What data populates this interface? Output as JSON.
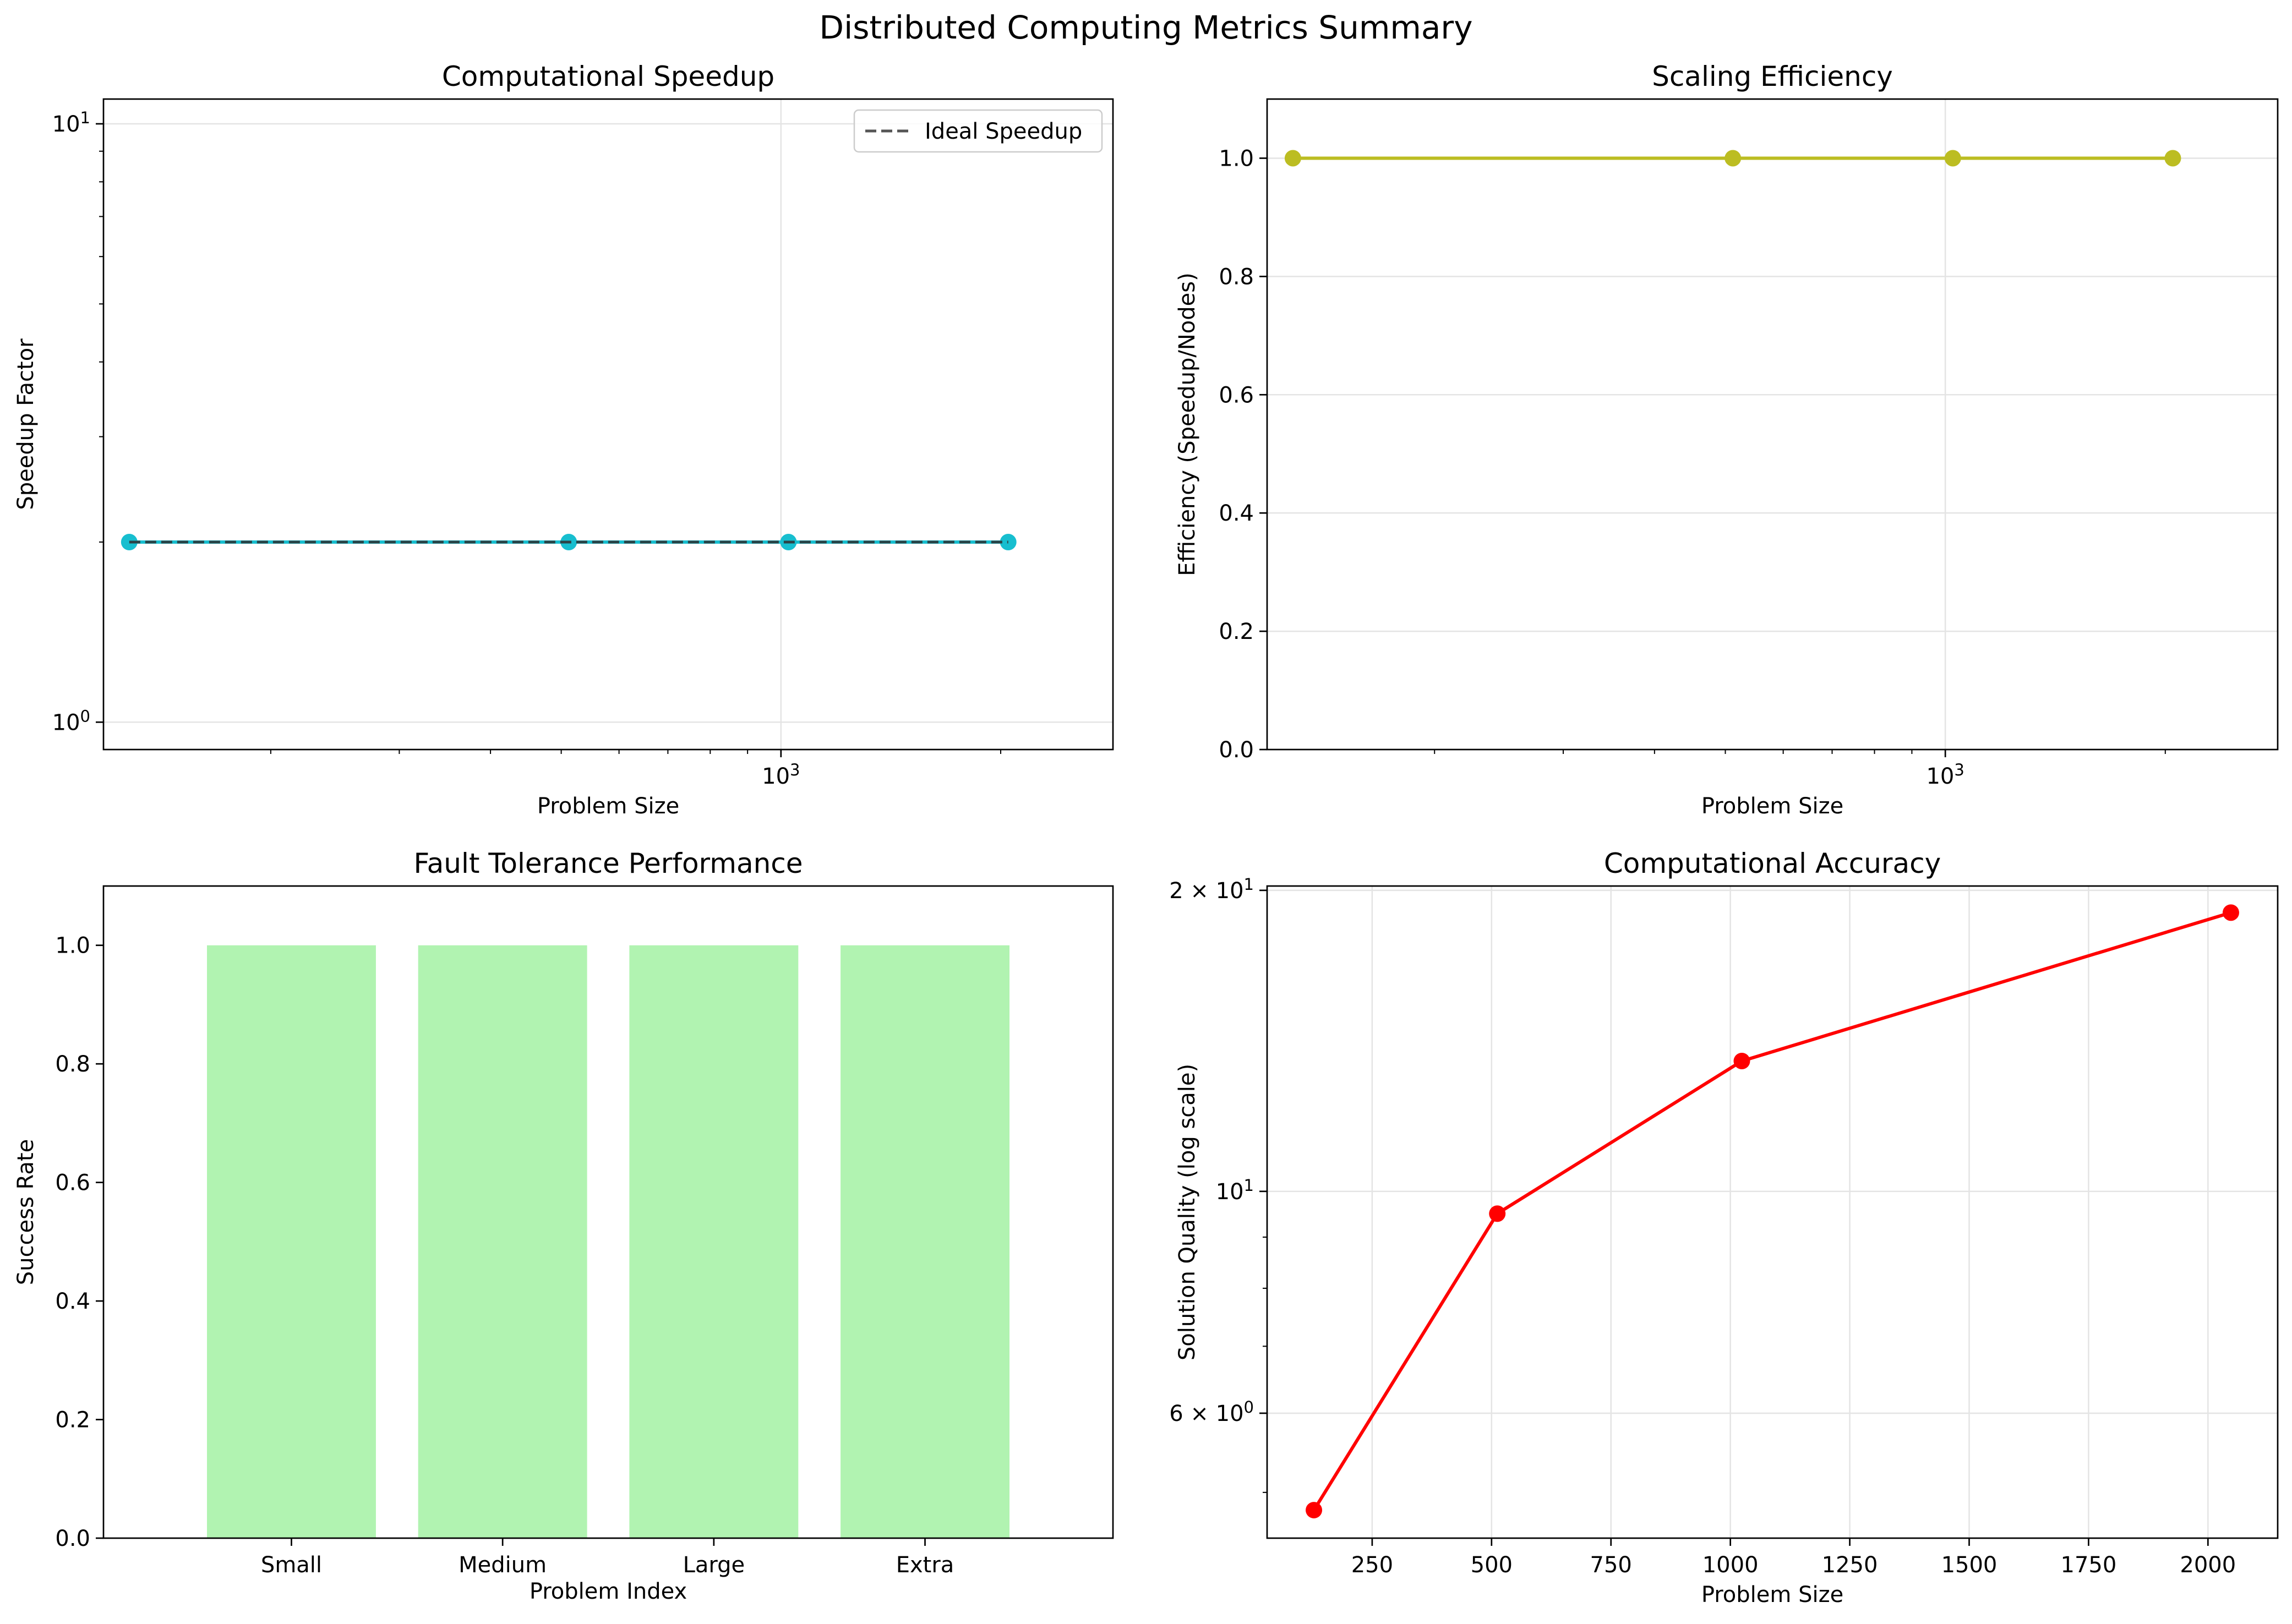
{
  "figure": {
    "suptitle": "Distributed Computing Metrics Summary"
  },
  "chart_data": [
    {
      "type": "line",
      "title": "Computational Speedup",
      "xlabel": "Problem Size",
      "ylabel": "Speedup Factor",
      "xscale": "log",
      "yscale": "log",
      "xlim": [
        118,
        2850
      ],
      "ylim": [
        0.9,
        11
      ],
      "xticks": [
        {
          "v": 1000,
          "base": "10",
          "exp": "3"
        }
      ],
      "yticks": [
        {
          "v": 1,
          "base": "10",
          "exp": "0"
        },
        {
          "v": 10,
          "base": "10",
          "exp": "1"
        }
      ],
      "grid": true,
      "legend": {
        "position": "upper right",
        "entries": [
          "Ideal Speedup"
        ]
      },
      "series": [
        {
          "role": "data",
          "x": [
            128,
            512,
            1024,
            2048
          ],
          "y": [
            2,
            2,
            2,
            2
          ],
          "color": "#17becf",
          "marker": "circle"
        },
        {
          "role": "ideal",
          "name": "Ideal Speedup",
          "x": [
            128,
            512,
            1024,
            2048
          ],
          "y": [
            2,
            2,
            2,
            2
          ],
          "color": "#2f2f2f",
          "style": "dashed"
        }
      ]
    },
    {
      "type": "line",
      "title": "Scaling Efficiency",
      "xlabel": "Problem Size",
      "ylabel": "Efficiency (Speedup/Nodes)",
      "xscale": "log",
      "xlim": [
        118,
        2850
      ],
      "ylim": [
        0,
        1.1
      ],
      "xticks": [
        {
          "v": 1000,
          "base": "10",
          "exp": "3"
        }
      ],
      "yticks": [
        0.0,
        0.2,
        0.4,
        0.6,
        0.8,
        1.0
      ],
      "grid": true,
      "series": [
        {
          "x": [
            128,
            512,
            1024,
            2048
          ],
          "y": [
            1.0,
            1.0,
            1.0,
            1.0
          ],
          "color": "#bcbd22",
          "marker": "circle"
        }
      ]
    },
    {
      "type": "bar",
      "title": "Fault Tolerance Performance",
      "xlabel": "Problem Index",
      "ylabel": "Success Rate",
      "categories": [
        "Small",
        "Medium",
        "Large",
        "Extra"
      ],
      "values": [
        1.0,
        1.0,
        1.0,
        1.0
      ],
      "ylim": [
        0,
        1.1
      ],
      "yticks": [
        0.0,
        0.2,
        0.4,
        0.6,
        0.8,
        1.0
      ],
      "color": "#90ee90",
      "grid": false
    },
    {
      "type": "line",
      "title": "Computational Accuracy",
      "xlabel": "Problem Size",
      "ylabel": "Solution Quality (log scale)",
      "xscale": "linear",
      "yscale": "log",
      "xlim": [
        30,
        2146
      ],
      "ylim": [
        4.5,
        20.2
      ],
      "xticks": [
        250,
        500,
        750,
        1000,
        1250,
        1500,
        1750,
        2000
      ],
      "yticks": [
        {
          "v": 6,
          "base": "6 × 10",
          "exp": "0"
        },
        {
          "v": 10,
          "base": "10",
          "exp": "1"
        },
        {
          "v": 20,
          "base": "2 × 10",
          "exp": "1"
        }
      ],
      "grid": true,
      "series": [
        {
          "x": [
            128,
            512,
            1024,
            2048
          ],
          "y": [
            4.8,
            9.5,
            13.5,
            19.0
          ],
          "color": "#ff0000",
          "marker": "circle"
        }
      ]
    }
  ]
}
